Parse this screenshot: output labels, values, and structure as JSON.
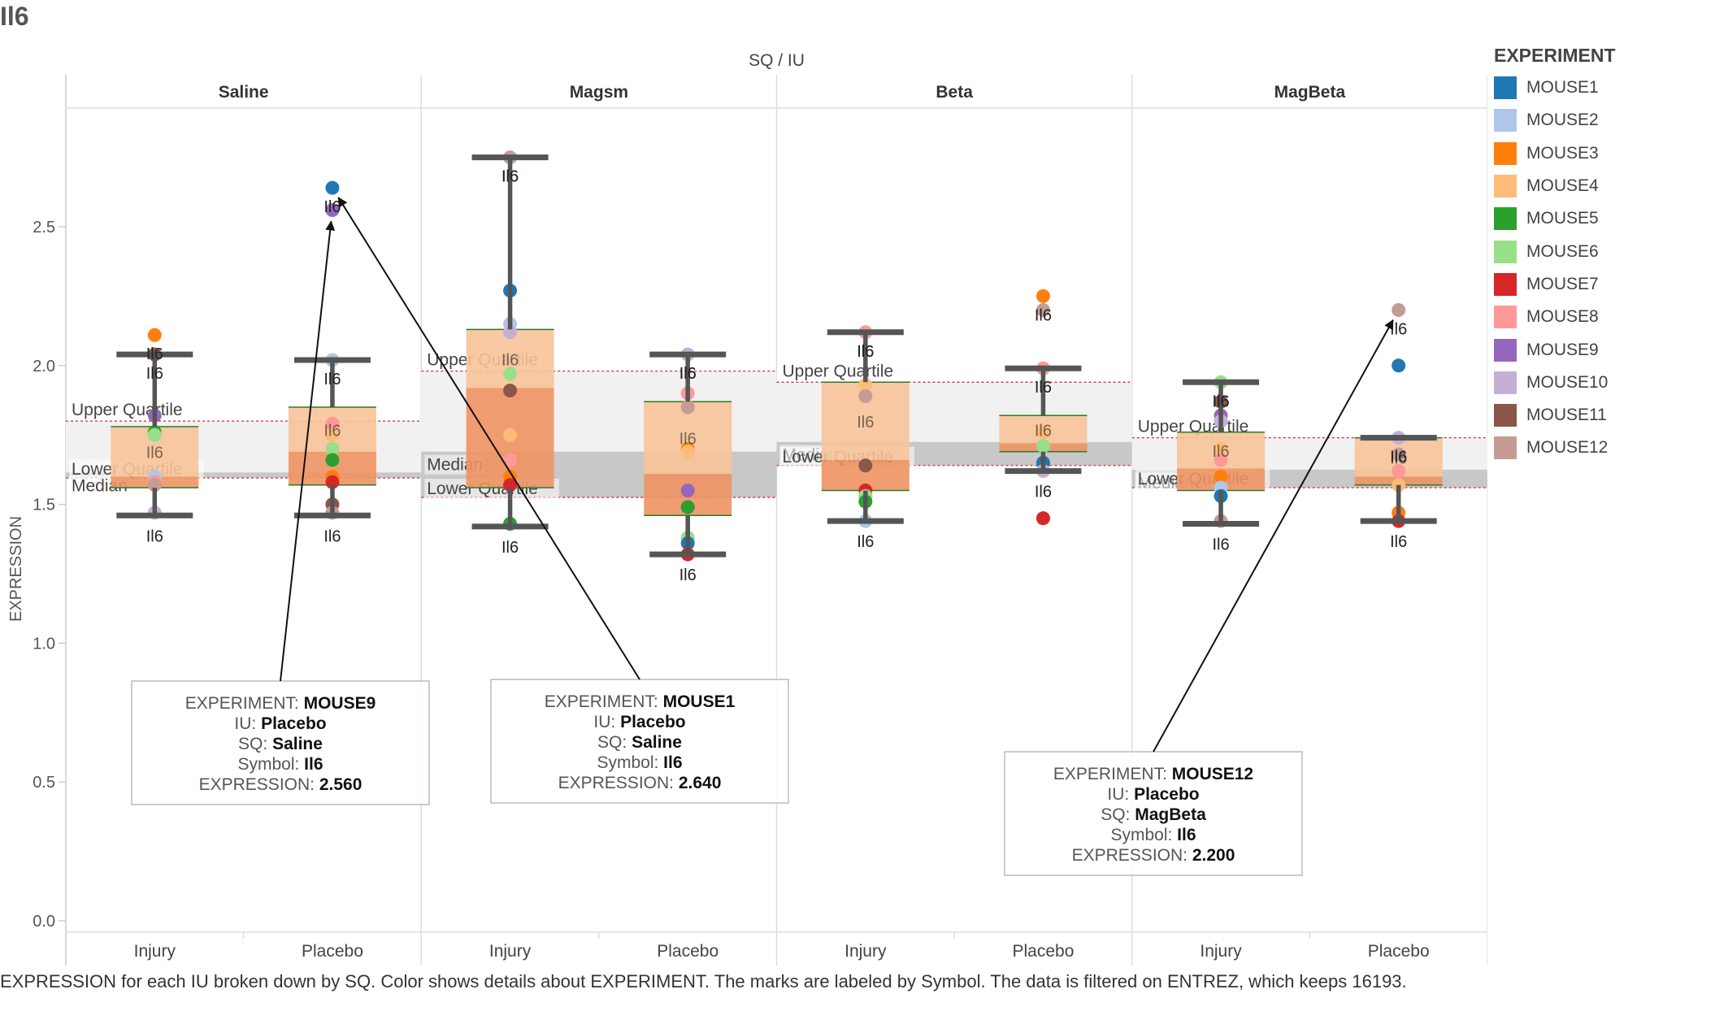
{
  "title": "Il6",
  "column_header": "SQ / IU",
  "y_axis_label": "EXPRESSION",
  "caption": "EXPRESSION for each IU broken down by SQ.  Color shows details about EXPERIMENT.  The marks are labeled by Symbol. The data is filtered on ENTREZ, which keeps 16193.",
  "legend": {
    "title": "EXPERIMENT",
    "items": [
      {
        "label": "MOUSE1",
        "color": "#1f77b4"
      },
      {
        "label": "MOUSE2",
        "color": "#aec7e8"
      },
      {
        "label": "MOUSE3",
        "color": "#ff7f0e"
      },
      {
        "label": "MOUSE4",
        "color": "#ffbb78"
      },
      {
        "label": "MOUSE5",
        "color": "#2ca02c"
      },
      {
        "label": "MOUSE6",
        "color": "#98df8a"
      },
      {
        "label": "MOUSE7",
        "color": "#d62728"
      },
      {
        "label": "MOUSE8",
        "color": "#ff9896"
      },
      {
        "label": "MOUSE9",
        "color": "#9467bd"
      },
      {
        "label": "MOUSE10",
        "color": "#c5b0d5"
      },
      {
        "label": "MOUSE11",
        "color": "#8c564b"
      },
      {
        "label": "MOUSE12",
        "color": "#c49c94"
      }
    ]
  },
  "reference_labels": {
    "upper": "Upper Quartile",
    "median": "Median",
    "lower": "Lower Quartile"
  },
  "chart_data": {
    "type": "box",
    "x_header": "SQ / IU",
    "ylabel": "EXPRESSION",
    "ylim": [
      0,
      2.95
    ],
    "yticks": [
      0.0,
      0.5,
      1.0,
      1.5,
      2.0,
      2.5
    ],
    "mark_label": "Il6",
    "panels": [
      {
        "name": "Saline",
        "ref_band": {
          "upper": 1.8,
          "median": 1.615,
          "lower": 1.595
        },
        "categories": [
          {
            "name": "Injury",
            "whisker_high": 2.04,
            "whisker_low": 1.46,
            "q3": 1.78,
            "median": 1.6,
            "q1": 1.56,
            "points": [
              [
                "MOUSE3",
                2.11
              ],
              [
                "MOUSE11",
                2.04
              ],
              [
                "MOUSE9",
                1.82
              ],
              [
                "MOUSE5",
                1.76
              ],
              [
                "MOUSE6",
                1.75
              ],
              [
                "MOUSE2",
                1.6
              ],
              [
                "MOUSE8",
                1.58
              ],
              [
                "MOUSE12",
                1.57
              ],
              [
                "MOUSE10",
                1.47
              ]
            ]
          },
          {
            "name": "Placebo",
            "whisker_high": 2.02,
            "whisker_low": 1.46,
            "q3": 1.85,
            "median": 1.69,
            "q1": 1.57,
            "points": [
              [
                "MOUSE1",
                2.64
              ],
              [
                "MOUSE9",
                2.56
              ],
              [
                "MOUSE2",
                2.02
              ],
              [
                "MOUSE8",
                1.79
              ],
              [
                "MOUSE4",
                1.75
              ],
              [
                "MOUSE6",
                1.7
              ],
              [
                "MOUSE5",
                1.66
              ],
              [
                "MOUSE3",
                1.6
              ],
              [
                "MOUSE7",
                1.58
              ],
              [
                "MOUSE11",
                1.5
              ],
              [
                "MOUSE12",
                1.47
              ]
            ]
          }
        ]
      },
      {
        "name": "Magsm",
        "ref_band": {
          "upper": 1.98,
          "median": 1.69,
          "lower": 1.525
        },
        "categories": [
          {
            "name": "Injury",
            "whisker_high": 2.75,
            "whisker_low": 1.42,
            "q3": 2.13,
            "median": 1.92,
            "q1": 1.56,
            "points": [
              [
                "MOUSE12",
                2.75
              ],
              [
                "MOUSE1",
                2.27
              ],
              [
                "MOUSE2",
                2.15
              ],
              [
                "MOUSE10",
                2.12
              ],
              [
                "MOUSE6",
                1.97
              ],
              [
                "MOUSE11",
                1.91
              ],
              [
                "MOUSE4",
                1.75
              ],
              [
                "MOUSE8",
                1.66
              ],
              [
                "MOUSE3",
                1.6
              ],
              [
                "MOUSE7",
                1.57
              ],
              [
                "MOUSE5",
                1.43
              ]
            ]
          },
          {
            "name": "Placebo",
            "whisker_high": 2.04,
            "whisker_low": 1.32,
            "q3": 1.87,
            "median": 1.61,
            "q1": 1.46,
            "points": [
              [
                "MOUSE10",
                2.04
              ],
              [
                "MOUSE8",
                1.9
              ],
              [
                "MOUSE12",
                1.85
              ],
              [
                "MOUSE3",
                1.7
              ],
              [
                "MOUSE4",
                1.69
              ],
              [
                "MOUSE9",
                1.55
              ],
              [
                "MOUSE11",
                1.49
              ],
              [
                "MOUSE5",
                1.49
              ],
              [
                "MOUSE6",
                1.38
              ],
              [
                "MOUSE1",
                1.36
              ],
              [
                "MOUSE7",
                1.32
              ]
            ]
          }
        ]
      },
      {
        "name": "Beta",
        "ref_band": {
          "upper": 1.94,
          "median": 1.725,
          "lower": 1.64
        },
        "categories": [
          {
            "name": "Injury",
            "whisker_high": 2.12,
            "whisker_low": 1.44,
            "q3": 1.94,
            "median": 1.66,
            "q1": 1.55,
            "points": [
              [
                "MOUSE8",
                2.12
              ],
              [
                "MOUSE4",
                1.93
              ],
              [
                "MOUSE12",
                1.89
              ],
              [
                "MOUSE11",
                1.64
              ],
              [
                "MOUSE7",
                1.55
              ],
              [
                "MOUSE3",
                1.53
              ],
              [
                "MOUSE6",
                1.53
              ],
              [
                "MOUSE5",
                1.51
              ],
              [
                "MOUSE2",
                1.44
              ]
            ]
          },
          {
            "name": "Placebo",
            "whisker_high": 1.99,
            "whisker_low": 1.62,
            "q3": 1.82,
            "median": 1.72,
            "q1": 1.69,
            "points": [
              [
                "MOUSE3",
                2.25
              ],
              [
                "MOUSE12",
                2.2
              ],
              [
                "MOUSE8",
                1.99
              ],
              [
                "MOUSE4",
                1.76
              ],
              [
                "MOUSE6",
                1.71
              ],
              [
                "MOUSE1",
                1.65
              ],
              [
                "MOUSE10",
                1.62
              ],
              [
                "MOUSE7",
                1.45
              ]
            ]
          }
        ]
      },
      {
        "name": "MagBeta",
        "ref_band": {
          "upper": 1.74,
          "median": 1.625,
          "lower": 1.56
        },
        "categories": [
          {
            "name": "Injury",
            "whisker_high": 1.94,
            "whisker_low": 1.43,
            "q3": 1.76,
            "median": 1.63,
            "q1": 1.55,
            "points": [
              [
                "MOUSE6",
                1.94
              ],
              [
                "MOUSE11",
                1.87
              ],
              [
                "MOUSE9",
                1.82
              ],
              [
                "MOUSE10",
                1.8
              ],
              [
                "MOUSE4",
                1.7
              ],
              [
                "MOUSE8",
                1.66
              ],
              [
                "MOUSE3",
                1.6
              ],
              [
                "MOUSE2",
                1.56
              ],
              [
                "MOUSE1",
                1.53
              ],
              [
                "MOUSE12",
                1.44
              ]
            ]
          },
          {
            "name": "Placebo",
            "whisker_high": 1.74,
            "whisker_low": 1.44,
            "q3": 1.74,
            "median": 1.6,
            "q1": 1.57,
            "points": [
              [
                "MOUSE12",
                2.2
              ],
              [
                "MOUSE1",
                2.0
              ],
              [
                "MOUSE10",
                1.74
              ],
              [
                "MOUSE12",
                1.68
              ],
              [
                "MOUSE8",
                1.62
              ],
              [
                "MOUSE4",
                1.57
              ],
              [
                "MOUSE3",
                1.47
              ],
              [
                "MOUSE7",
                1.44
              ]
            ]
          }
        ]
      }
    ],
    "annotations": [
      {
        "panel": 0,
        "category": 1,
        "value": 2.56,
        "lines": [
          [
            "EXPERIMENT: ",
            "MOUSE9"
          ],
          [
            "IU: ",
            "Placebo"
          ],
          [
            "SQ: ",
            "Saline"
          ],
          [
            "Symbol: ",
            "Il6"
          ],
          [
            "EXPRESSION: ",
            "2.560"
          ]
        ]
      },
      {
        "panel": 0,
        "category": 1,
        "value": 2.64,
        "lines": [
          [
            "EXPERIMENT: ",
            "MOUSE1"
          ],
          [
            "IU: ",
            "Placebo"
          ],
          [
            "SQ: ",
            "Saline"
          ],
          [
            "Symbol: ",
            "Il6"
          ],
          [
            "EXPRESSION: ",
            "2.640"
          ]
        ]
      },
      {
        "panel": 3,
        "category": 1,
        "value": 2.2,
        "lines": [
          [
            "EXPERIMENT: ",
            "MOUSE12"
          ],
          [
            "IU: ",
            "Placebo"
          ],
          [
            "SQ: ",
            "MagBeta"
          ],
          [
            "Symbol: ",
            "Il6"
          ],
          [
            "EXPRESSION: ",
            "2.200"
          ]
        ]
      }
    ]
  }
}
